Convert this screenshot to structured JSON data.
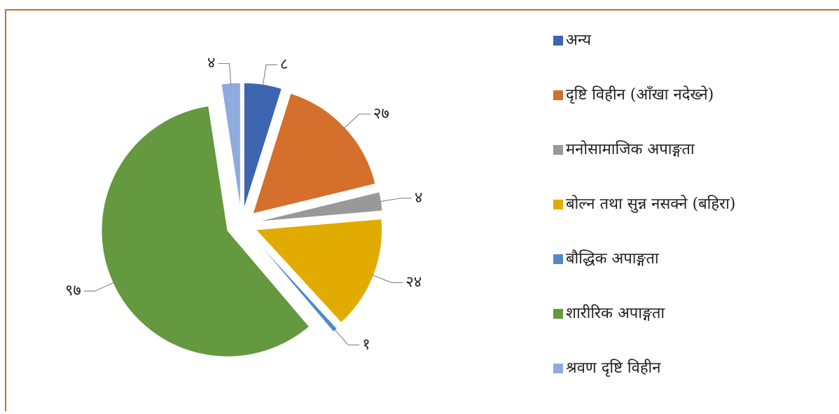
{
  "chart_data": {
    "type": "pie",
    "categories": [
      "अन्य",
      "दृष्टि विहीन (आँखा नदेख्ने)",
      "मनोसामाजिक अपाङ्गता",
      "बोल्न तथा सुन्न नसक्ने (बहिरा)",
      "बौद्धिक अपाङ्गता",
      "शारीरिक अपाङ्गता",
      "श्रवण दृष्टि विहीन"
    ],
    "values": [
      8,
      27,
      4,
      24,
      1,
      97,
      4
    ],
    "value_labels": [
      "८",
      "२७",
      "४",
      "२४",
      "१",
      "९७",
      "४"
    ],
    "colors": [
      "#3d65b0",
      "#d4702c",
      "#999999",
      "#e2ab00",
      "#4f8ac7",
      "#64993f",
      "#8faadc"
    ],
    "legend": "right"
  }
}
